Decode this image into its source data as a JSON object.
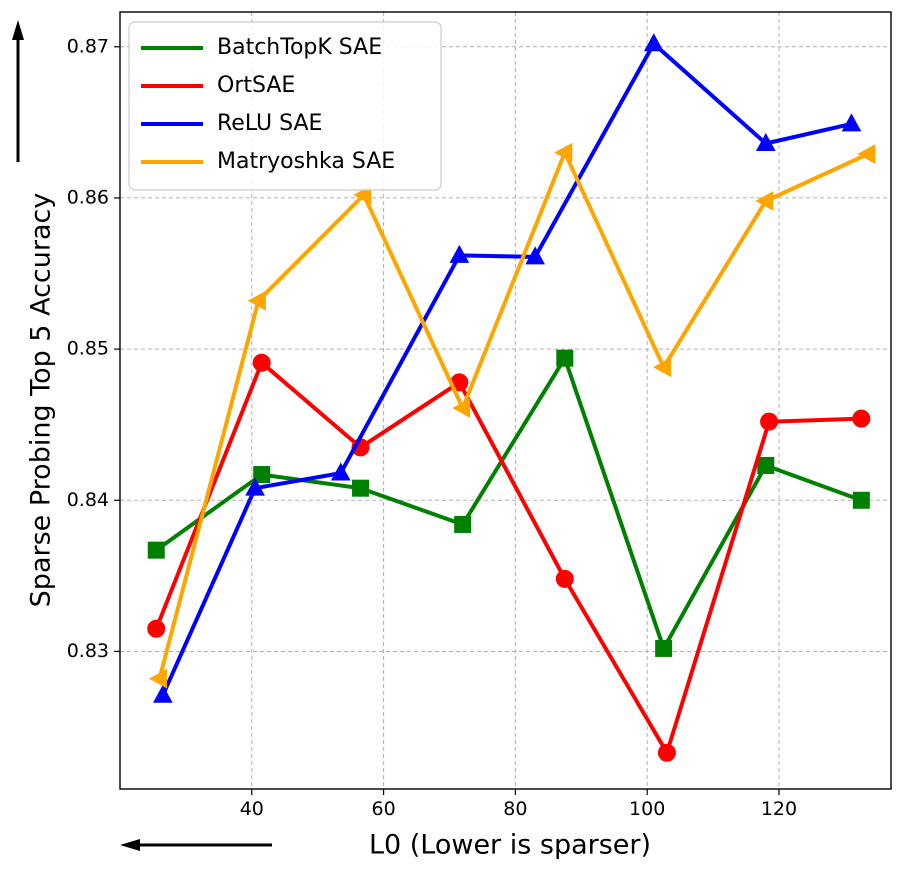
{
  "chart_data": {
    "type": "line",
    "title": "",
    "xlabel": "L0 (Lower is sparser)",
    "ylabel": "Sparse Probing Top 5 Accuracy",
    "xlim": [
      20,
      137
    ],
    "ylim": [
      0.8209,
      0.8723
    ],
    "xticks": [
      40,
      60,
      80,
      100,
      120
    ],
    "xtick_labels": [
      "40",
      "60",
      "80",
      "100",
      "120"
    ],
    "yticks": [
      0.83,
      0.84,
      0.85,
      0.86,
      0.87
    ],
    "ytick_labels": [
      "0.83",
      "0.84",
      "0.85",
      "0.86",
      "0.87"
    ],
    "grid": true,
    "legend_position": "top-left",
    "annotations": [
      "arrow-up along y-axis (higher accuracy is better)",
      "arrow-left under x-axis (lower L0 is sparser)"
    ],
    "series": [
      {
        "name": "BatchTopK SAE",
        "color": "#008000",
        "marker": "square",
        "points": [
          [
            25.5,
            0.8367
          ],
          [
            41.5,
            0.8417
          ],
          [
            56.5,
            0.8408
          ],
          [
            72,
            0.8384
          ],
          [
            87.5,
            0.8494
          ],
          [
            102.5,
            0.8302
          ],
          [
            118,
            0.8423
          ],
          [
            132.5,
            0.84
          ]
        ]
      },
      {
        "name": "OrtSAE",
        "color": "#ff0000",
        "marker": "circle",
        "points": [
          [
            25.5,
            0.8315
          ],
          [
            41.5,
            0.8491
          ],
          [
            56.5,
            0.8435
          ],
          [
            71.5,
            0.8478
          ],
          [
            87.5,
            0.8348
          ],
          [
            103,
            0.8233
          ],
          [
            118.5,
            0.8452
          ],
          [
            132.5,
            0.8454
          ]
        ]
      },
      {
        "name": "ReLU SAE",
        "color": "#0000ff",
        "marker": "triangle-up",
        "points": [
          [
            26.5,
            0.8271
          ],
          [
            40.5,
            0.8408
          ],
          [
            53.5,
            0.8418
          ],
          [
            71.5,
            0.8562
          ],
          [
            83,
            0.8561
          ],
          [
            101,
            0.8702
          ],
          [
            118,
            0.8636
          ],
          [
            131,
            0.8649
          ]
        ]
      },
      {
        "name": "Matryoshka SAE",
        "color": "#ffa500",
        "marker": "triangle-left",
        "points": [
          [
            26,
            0.8282
          ],
          [
            41,
            0.8532
          ],
          [
            57,
            0.8602
          ],
          [
            72,
            0.8461
          ],
          [
            87.5,
            0.863
          ],
          [
            102.5,
            0.8488
          ],
          [
            118,
            0.8598
          ],
          [
            133.5,
            0.8629
          ]
        ]
      }
    ]
  }
}
